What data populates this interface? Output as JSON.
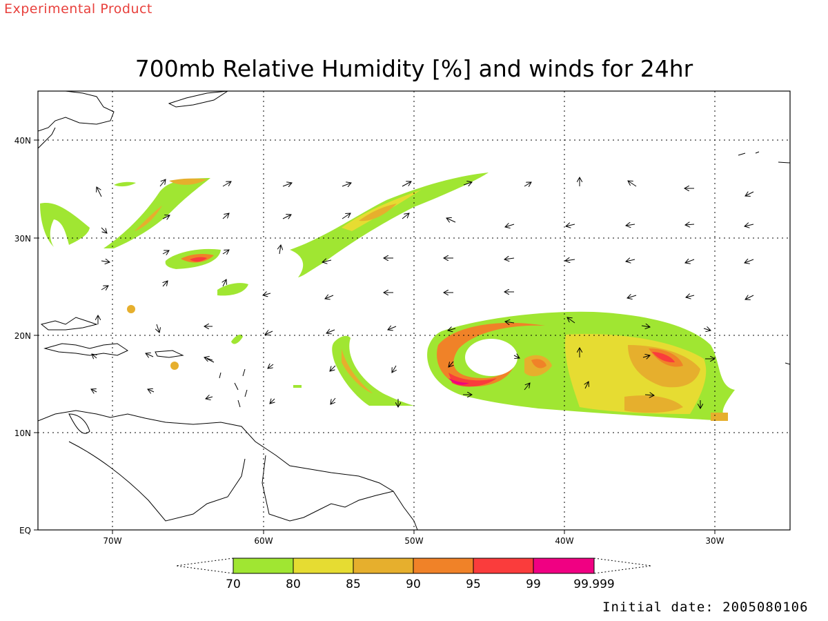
{
  "header": {
    "product_label": "Experimental Product",
    "title": "700mb Relative Humidity [%] and winds for 24hr"
  },
  "axes": {
    "lat_ticks": [
      "40N",
      "30N",
      "20N",
      "10N",
      "EQ"
    ],
    "lon_ticks": [
      "70W",
      "60W",
      "50W",
      "40W",
      "30W"
    ]
  },
  "colorbar": {
    "labels": [
      "70",
      "80",
      "85",
      "90",
      "95",
      "99",
      "99.999"
    ],
    "colors": [
      "#a0e632",
      "#e6dc32",
      "#e6af2d",
      "#f08228",
      "#fa3c3c",
      "#f00082"
    ]
  },
  "footer": {
    "initial_date": "Initial date: 2005080106"
  }
}
